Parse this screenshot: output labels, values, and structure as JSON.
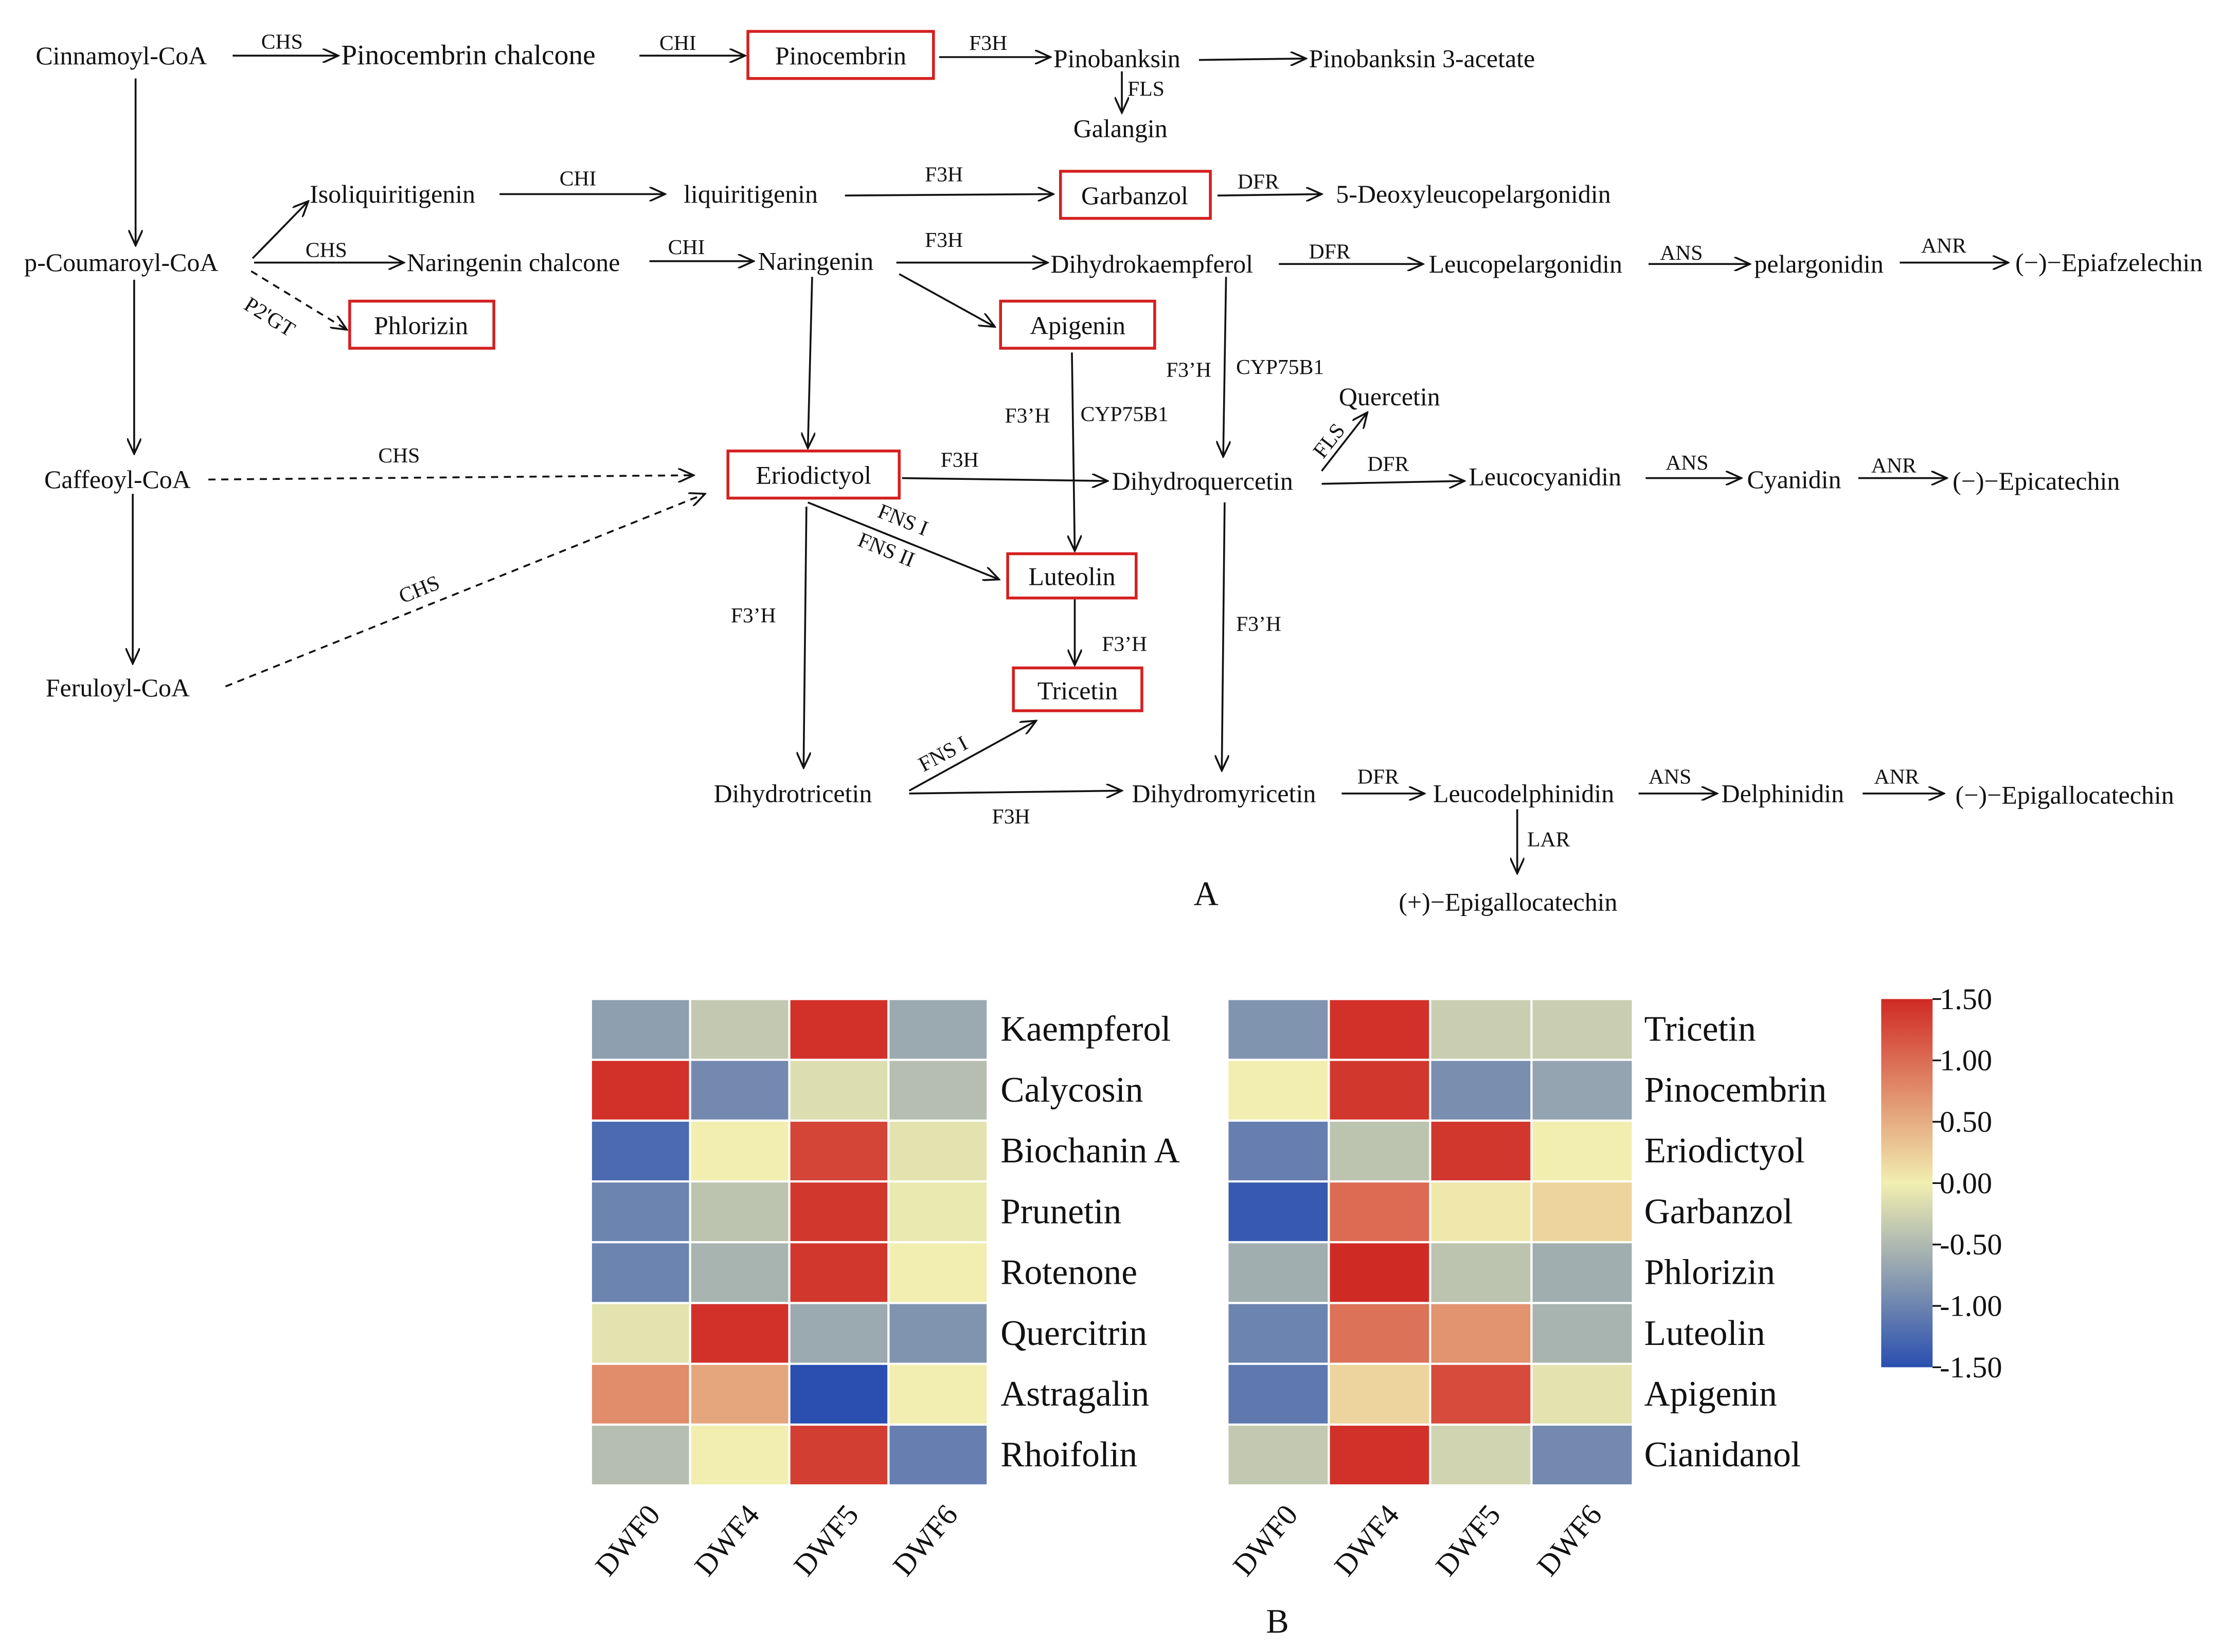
{
  "panel_labels": {
    "a": "A",
    "b": "B"
  },
  "pathway": {
    "nodes": {
      "cinnamoyl": "Cinnamoyl-CoA",
      "pinocembrin_chalcone": "Pinocembrin chalcone",
      "pinocembrin": "Pinocembrin",
      "pinobanksin": "Pinobanksin",
      "pinobanksin_acetate": "Pinobanksin 3-acetate",
      "galangin": "Galangin",
      "isoliquiritigenin": "Isoliquiritigenin",
      "liquiritigenin": "liquiritigenin",
      "garbanzol": "Garbanzol",
      "deoxyleucopelargonidin": "5-Deoxyleucopelargonidin",
      "coumaroyl": "p-Coumaroyl-CoA",
      "naringenin_chalcone": "Naringenin chalcone",
      "naringenin": "Naringenin",
      "dihydrokaempferol": "Dihydrokaempferol",
      "leucopelargonidin": "Leucopelargonidin",
      "pelargonidin": "pelargonidin",
      "epiafzelechin": "(−)−Epiafzelechin",
      "phlorizin": "Phlorizin",
      "apigenin": "Apigenin",
      "quercetin": "Quercetin",
      "caffeoyl": "Caffeoyl-CoA",
      "eriodictyol": "Eriodictyol",
      "dihydroquercetin": "Dihydroquercetin",
      "leucocyanidin": "Leucocyanidin",
      "cyanidin": "Cyanidin",
      "epicatechin": "(−)−Epicatechin",
      "luteolin": "Luteolin",
      "feruloyl": "Feruloyl-CoA",
      "tricetin": "Tricetin",
      "dihydrotricetin": "Dihydrotricetin",
      "dihydromyricetin": "Dihydromyricetin",
      "leucodelphinidin": "Leucodelphinidin",
      "delphinidin": "Delphinidin",
      "epigallocatechin_minus": "(−)−Epigallocatechin",
      "epigallocatechin_plus": "(+)−Epigallocatechin"
    },
    "enzymes": {
      "chs_1": "CHS",
      "chi_1": "CHI",
      "f3h_1": "F3H",
      "fls_1": "FLS",
      "chi_2": "CHI",
      "f3h_2": "F3H",
      "dfr_1": "DFR",
      "chs_2": "CHS",
      "chi_3": "CHI",
      "f3h_3": "F3H",
      "dfr_2": "DFR",
      "ans_1": "ANS",
      "anr_1": "ANR",
      "p2gt": "P2'GT",
      "f3ph_1": "F3’H",
      "cyp_1": "CYP75B1",
      "f3ph_2": "F3’H",
      "cyp_2": "CYP75B1",
      "chs_3": "CHS",
      "f3h_4": "F3H",
      "fls_2": "FLS",
      "dfr_3": "DFR",
      "ans_2": "ANS",
      "anr_2": "ANR",
      "fns1_a": "FNS I",
      "fns2": "FNS II",
      "chs_4": "CHS",
      "f3ph_3": "F3’H",
      "f3ph_4": "F3’H",
      "f3ph_5": "F3’H",
      "fns1_b": "FNS I",
      "f3h_5": "F3H",
      "dfr_4": "DFR",
      "ans_3": "ANS",
      "anr_3": "ANR",
      "lar": "LAR"
    }
  },
  "chart_data": [
    {
      "type": "heatmap",
      "title": "",
      "columns": [
        "DWF0",
        "DWF4",
        "DWF5",
        "DWF6"
      ],
      "rows": [
        "Kaempferol",
        "Calycosin",
        "Biochanin A",
        "Prunetin",
        "Rotenone",
        "Quercitrin",
        "Astragalin",
        "Rhoifolin"
      ],
      "values": [
        [
          -0.75,
          -0.35,
          1.45,
          -0.65
        ],
        [
          1.45,
          -0.95,
          -0.15,
          -0.45
        ],
        [
          -1.25,
          0.0,
          1.3,
          -0.1
        ],
        [
          -1.0,
          -0.4,
          1.4,
          -0.05
        ],
        [
          -1.0,
          -0.55,
          1.4,
          0.0
        ],
        [
          -0.1,
          1.45,
          -0.65,
          -0.85
        ],
        [
          0.75,
          0.55,
          -1.5,
          0.0
        ],
        [
          -0.45,
          0.0,
          1.35,
          -1.05
        ]
      ],
      "colorbar": {
        "min": -1.5,
        "max": 1.5
      }
    },
    {
      "type": "heatmap",
      "title": "",
      "columns": [
        "DWF0",
        "DWF4",
        "DWF5",
        "DWF6"
      ],
      "rows": [
        "Tricetin",
        "Pinocembrin",
        "Eriodictyol",
        "Garbanzol",
        "Phlorizin",
        "Luteolin",
        "Apigenin",
        "Cianidanol"
      ],
      "values": [
        [
          -0.85,
          1.45,
          -0.3,
          -0.3
        ],
        [
          0.0,
          1.4,
          -0.9,
          -0.7
        ],
        [
          -1.05,
          -0.4,
          1.4,
          0.0
        ],
        [
          -1.4,
          1.0,
          0.05,
          0.2
        ],
        [
          -0.6,
          1.5,
          -0.4,
          -0.6
        ],
        [
          -1.0,
          0.95,
          0.7,
          -0.55
        ],
        [
          -1.1,
          0.2,
          1.25,
          -0.1
        ],
        [
          -0.35,
          1.45,
          -0.25,
          -0.95
        ]
      ],
      "colorbar": {
        "min": -1.5,
        "max": 1.5
      }
    }
  ],
  "colorbar": {
    "ticks": [
      "1.50",
      "1.00",
      "0.50",
      "0.00",
      "-0.50",
      "-1.00",
      "-1.50"
    ],
    "colors": {
      "low": "#2a4fb0",
      "mid": "#f1eeb0",
      "high": "#d02a24"
    }
  }
}
